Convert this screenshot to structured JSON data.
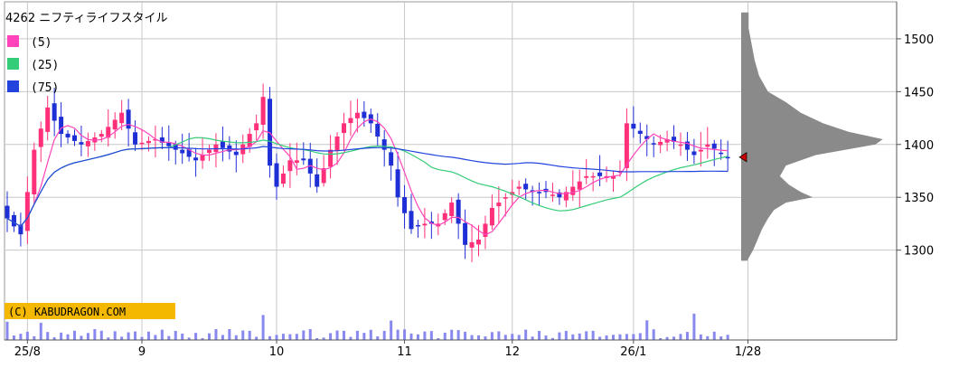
{
  "chart_data": {
    "type": "candlestick",
    "code": "4262",
    "name": "ニフティライフスタイル",
    "copyright": "(C) KABUDRAGON.COM",
    "moving_averages": [
      {
        "label": "(5)",
        "color": "#ff44bb"
      },
      {
        "label": "(25)",
        "color": "#33cc77"
      },
      {
        "label": "(75)",
        "color": "#2244dd"
      }
    ],
    "colors": {
      "up": "#ff2f7a",
      "down": "#1e2fd6",
      "volume": "#8888ee",
      "profile": "#8a8a8a",
      "grid": "#c8c8c8",
      "marker": "#cc0000"
    },
    "ylim": [
      1215,
      1535
    ],
    "y_ticks": [
      1300,
      1350,
      1400,
      1450,
      1500
    ],
    "x_ticks": [
      {
        "label": "25/8",
        "index": 3
      },
      {
        "label": "9",
        "index": 20
      },
      {
        "label": "10",
        "index": 40
      },
      {
        "label": "11",
        "index": 59
      },
      {
        "label": "12",
        "index": 75
      },
      {
        "label": "26/1",
        "index": 93
      },
      {
        "label": "1/28",
        "index": 110
      }
    ],
    "last_price": 1388,
    "close_anchors": [
      [
        0,
        1330
      ],
      [
        2,
        1315
      ],
      [
        4,
        1395
      ],
      [
        6,
        1435
      ],
      [
        8,
        1410
      ],
      [
        11,
        1400
      ],
      [
        14,
        1410
      ],
      [
        17,
        1430
      ],
      [
        19,
        1400
      ],
      [
        22,
        1405
      ],
      [
        25,
        1395
      ],
      [
        28,
        1385
      ],
      [
        31,
        1400
      ],
      [
        34,
        1390
      ],
      [
        37,
        1420
      ],
      [
        38,
        1445
      ],
      [
        39,
        1380
      ],
      [
        40,
        1360
      ],
      [
        42,
        1385
      ],
      [
        44,
        1385
      ],
      [
        46,
        1360
      ],
      [
        48,
        1395
      ],
      [
        50,
        1420
      ],
      [
        52,
        1430
      ],
      [
        54,
        1420
      ],
      [
        56,
        1395
      ],
      [
        57,
        1380
      ],
      [
        58,
        1350
      ],
      [
        60,
        1320
      ],
      [
        62,
        1325
      ],
      [
        64,
        1325
      ],
      [
        66,
        1345
      ],
      [
        68,
        1305
      ],
      [
        70,
        1310
      ],
      [
        72,
        1340
      ],
      [
        74,
        1350
      ],
      [
        76,
        1360
      ],
      [
        78,
        1355
      ],
      [
        80,
        1355
      ],
      [
        82,
        1350
      ],
      [
        84,
        1360
      ],
      [
        86,
        1370
      ],
      [
        88,
        1370
      ],
      [
        90,
        1370
      ],
      [
        91,
        1375
      ],
      [
        92,
        1420
      ],
      [
        94,
        1410
      ],
      [
        96,
        1400
      ],
      [
        98,
        1405
      ],
      [
        100,
        1400
      ],
      [
        102,
        1390
      ],
      [
        104,
        1400
      ],
      [
        106,
        1392
      ],
      [
        107,
        1388
      ]
    ],
    "volume_profile": [
      [
        1525,
        0.05
      ],
      [
        1510,
        0.05
      ],
      [
        1495,
        0.07
      ],
      [
        1480,
        0.09
      ],
      [
        1465,
        0.12
      ],
      [
        1450,
        0.18
      ],
      [
        1440,
        0.3
      ],
      [
        1430,
        0.4
      ],
      [
        1420,
        0.55
      ],
      [
        1412,
        0.72
      ],
      [
        1405,
        0.95
      ],
      [
        1400,
        0.9
      ],
      [
        1395,
        0.7
      ],
      [
        1390,
        0.5
      ],
      [
        1380,
        0.3
      ],
      [
        1370,
        0.26
      ],
      [
        1362,
        0.32
      ],
      [
        1355,
        0.4
      ],
      [
        1350,
        0.48
      ],
      [
        1345,
        0.3
      ],
      [
        1338,
        0.22
      ],
      [
        1330,
        0.18
      ],
      [
        1320,
        0.14
      ],
      [
        1310,
        0.11
      ],
      [
        1300,
        0.08
      ],
      [
        1290,
        0.04
      ]
    ]
  }
}
